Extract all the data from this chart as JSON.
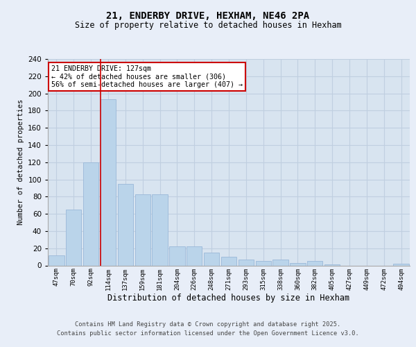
{
  "title": "21, ENDERBY DRIVE, HEXHAM, NE46 2PA",
  "subtitle": "Size of property relative to detached houses in Hexham",
  "xlabel": "Distribution of detached houses by size in Hexham",
  "ylabel": "Number of detached properties",
  "categories": [
    "47sqm",
    "70sqm",
    "92sqm",
    "114sqm",
    "137sqm",
    "159sqm",
    "181sqm",
    "204sqm",
    "226sqm",
    "248sqm",
    "271sqm",
    "293sqm",
    "315sqm",
    "338sqm",
    "360sqm",
    "382sqm",
    "405sqm",
    "427sqm",
    "449sqm",
    "472sqm",
    "494sqm"
  ],
  "values": [
    12,
    65,
    120,
    193,
    95,
    83,
    83,
    22,
    22,
    15,
    10,
    7,
    5,
    7,
    3,
    5,
    1,
    0,
    0,
    0,
    2
  ],
  "bar_color": "#bad4ea",
  "bar_edge_color": "#9ab8d8",
  "highlight_index": 3,
  "highlight_line_color": "#cc0000",
  "annotation_box_text": "21 ENDERBY DRIVE: 127sqm\n← 42% of detached houses are smaller (306)\n56% of semi-detached houses are larger (407) →",
  "annotation_box_color": "#cc0000",
  "annotation_fill_color": "#ffffff",
  "ylim": [
    0,
    240
  ],
  "yticks": [
    0,
    20,
    40,
    60,
    80,
    100,
    120,
    140,
    160,
    180,
    200,
    220,
    240
  ],
  "footer_line1": "Contains HM Land Registry data © Crown copyright and database right 2025.",
  "footer_line2": "Contains public sector information licensed under the Open Government Licence v3.0.",
  "bg_color": "#e8eef8",
  "plot_bg_color": "#d8e4f0",
  "grid_color": "#c0cfe0"
}
